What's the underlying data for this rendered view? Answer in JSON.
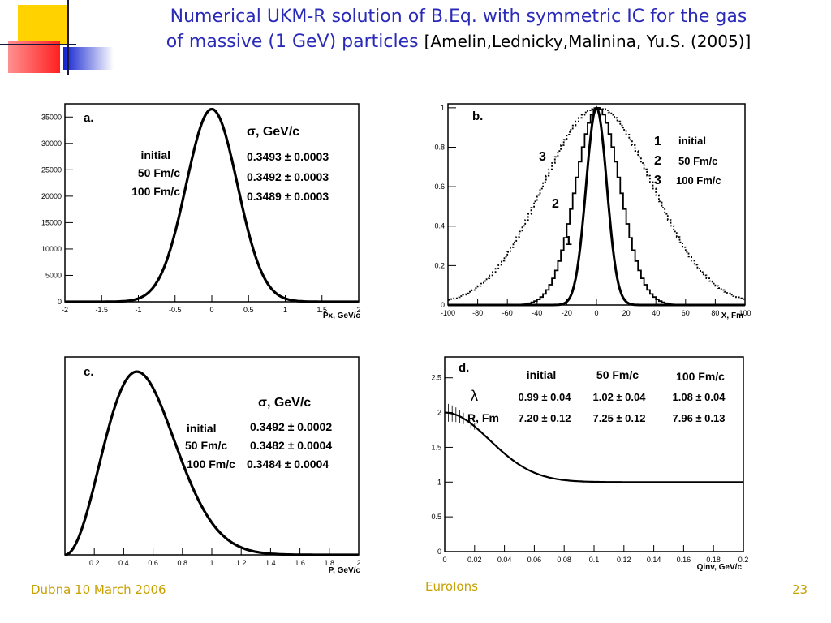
{
  "slide": {
    "title_line1": "Numerical UKM-R solution of  B.Eq. with symmetric IC for the gas",
    "title_line2": "of massive (1 GeV)  particles ",
    "title_ref": "[Amelin,Lednicky,Malinina, Yu.S. (2005)]",
    "footer_left": "Dubna 10 March 2006",
    "footer_center": "EuroIons",
    "page_number": "23",
    "accent_colors": {
      "title": "#2a2ab8",
      "footer": "#c8a000",
      "deco_yellow": "#ffd200",
      "deco_blue": "#1a2ad2",
      "deco_red": "#ff3030"
    }
  },
  "chart_data": [
    {
      "id": "a",
      "type": "line",
      "panel_label": "a.",
      "xlabel": "Px, GeV/c",
      "ylabel": "",
      "xlim": [
        -2,
        2
      ],
      "ylim": [
        0,
        37500
      ],
      "xticks": [
        -2,
        -1.5,
        -1,
        -0.5,
        0,
        0.5,
        1,
        1.5,
        2
      ],
      "xtick_labels": [
        "-2",
        "-1.5",
        "-1",
        "-0.5",
        "0",
        "0.5",
        "1",
        "1.5",
        "2"
      ],
      "yticks": [
        0,
        5000,
        10000,
        15000,
        20000,
        25000,
        30000,
        35000
      ],
      "ytick_labels": [
        "0",
        "5000",
        "10000",
        "15000",
        "20000",
        "25000",
        "30000",
        "35000"
      ],
      "grid": false,
      "curve": {
        "model": "gaussian",
        "center": 0,
        "sigma": 0.35,
        "peak": 36500
      },
      "legend_header": "σ, GeV/c",
      "legend_rows": [
        {
          "label": "initial",
          "value": "0.3493 ± 0.0003"
        },
        {
          "label": "50 Fm/c",
          "value": "0.3492 ± 0.0003"
        },
        {
          "label": "100 Fm/c",
          "value": "0.3489 ± 0.0003"
        }
      ]
    },
    {
      "id": "b",
      "type": "line",
      "panel_label": "b.",
      "xlabel": "X, Fm",
      "ylabel": "",
      "xlim": [
        -100,
        100
      ],
      "ylim": [
        0,
        1.02
      ],
      "xticks": [
        -100,
        -80,
        -60,
        -40,
        -20,
        0,
        20,
        40,
        60,
        80,
        100
      ],
      "xtick_labels": [
        "-100",
        "-80",
        "-60",
        "-40",
        "-20",
        "0",
        "20",
        "40",
        "60",
        "80",
        "100"
      ],
      "yticks": [
        0,
        0.2,
        0.4,
        0.6,
        0.8,
        1
      ],
      "ytick_labels": [
        "0",
        "0.2",
        "0.4",
        "0.6",
        "0.8",
        "1"
      ],
      "grid": false,
      "series": [
        {
          "name": "initial",
          "marker": "1",
          "sigma": 7,
          "style": "solid-thick"
        },
        {
          "name": "50 Fm/c",
          "marker": "2",
          "sigma": 15,
          "style": "solid-step"
        },
        {
          "name": "100 Fm/c",
          "marker": "3",
          "sigma": 37,
          "style": "dotted"
        }
      ]
    },
    {
      "id": "c",
      "type": "line",
      "panel_label": "c.",
      "xlabel": "P, GeV/c",
      "ylabel": "",
      "xlim": [
        0,
        2
      ],
      "ylim": [
        0,
        1.08
      ],
      "xticks": [
        0.2,
        0.4,
        0.6,
        0.8,
        1,
        1.2,
        1.4,
        1.6,
        1.8,
        2
      ],
      "xtick_labels": [
        "0.2",
        "0.4",
        "0.6",
        "0.8",
        "1",
        "1.2",
        "1.4",
        "1.6",
        "1.8",
        "2"
      ],
      "yticks": [],
      "ytick_labels": [],
      "grid": false,
      "curve": {
        "model": "maxwell",
        "peak_x": 0.49,
        "peak": 1.0
      },
      "legend_header": "σ, GeV/c",
      "legend_rows": [
        {
          "label": "initial",
          "value": "0.3492 ± 0.0002"
        },
        {
          "label": "50 Fm/c",
          "value": "0.3482 ± 0.0004"
        },
        {
          "label": "100 Fm/c",
          "value": "0.3484 ± 0.0004"
        }
      ]
    },
    {
      "id": "d",
      "type": "line",
      "panel_label": "d.",
      "xlabel": "Qinv, GeV/c",
      "ylabel": "",
      "xlim": [
        0,
        0.2
      ],
      "ylim": [
        0,
        2.8
      ],
      "xticks": [
        0,
        0.02,
        0.04,
        0.06,
        0.08,
        0.1,
        0.12,
        0.14,
        0.16,
        0.18,
        0.2
      ],
      "xtick_labels": [
        "0",
        "0.02",
        "0.04",
        "0.06",
        "0.08",
        "0.1",
        "0.12",
        "0.14",
        "0.16",
        "0.18",
        "0.2"
      ],
      "yticks": [
        0,
        0.5,
        1,
        1.5,
        2,
        2.5
      ],
      "ytick_labels": [
        "0",
        "0.5",
        "1",
        "1.5",
        "2",
        "2.5"
      ],
      "grid": false,
      "curve": {
        "model": "correlation",
        "lambda": 1.0,
        "width": 0.03
      },
      "table_columns": [
        "initial",
        "50 Fm/c",
        "100 Fm/c"
      ],
      "table_rows": [
        {
          "label": "λ",
          "values": [
            "0.99 ± 0.04",
            "1.02 ± 0.04",
            "1.08 ± 0.04"
          ]
        },
        {
          "label": "R, Fm",
          "values": [
            "7.20 ± 0.12",
            "7.25 ± 0.12",
            "7.96 ± 0.13"
          ]
        }
      ]
    }
  ]
}
